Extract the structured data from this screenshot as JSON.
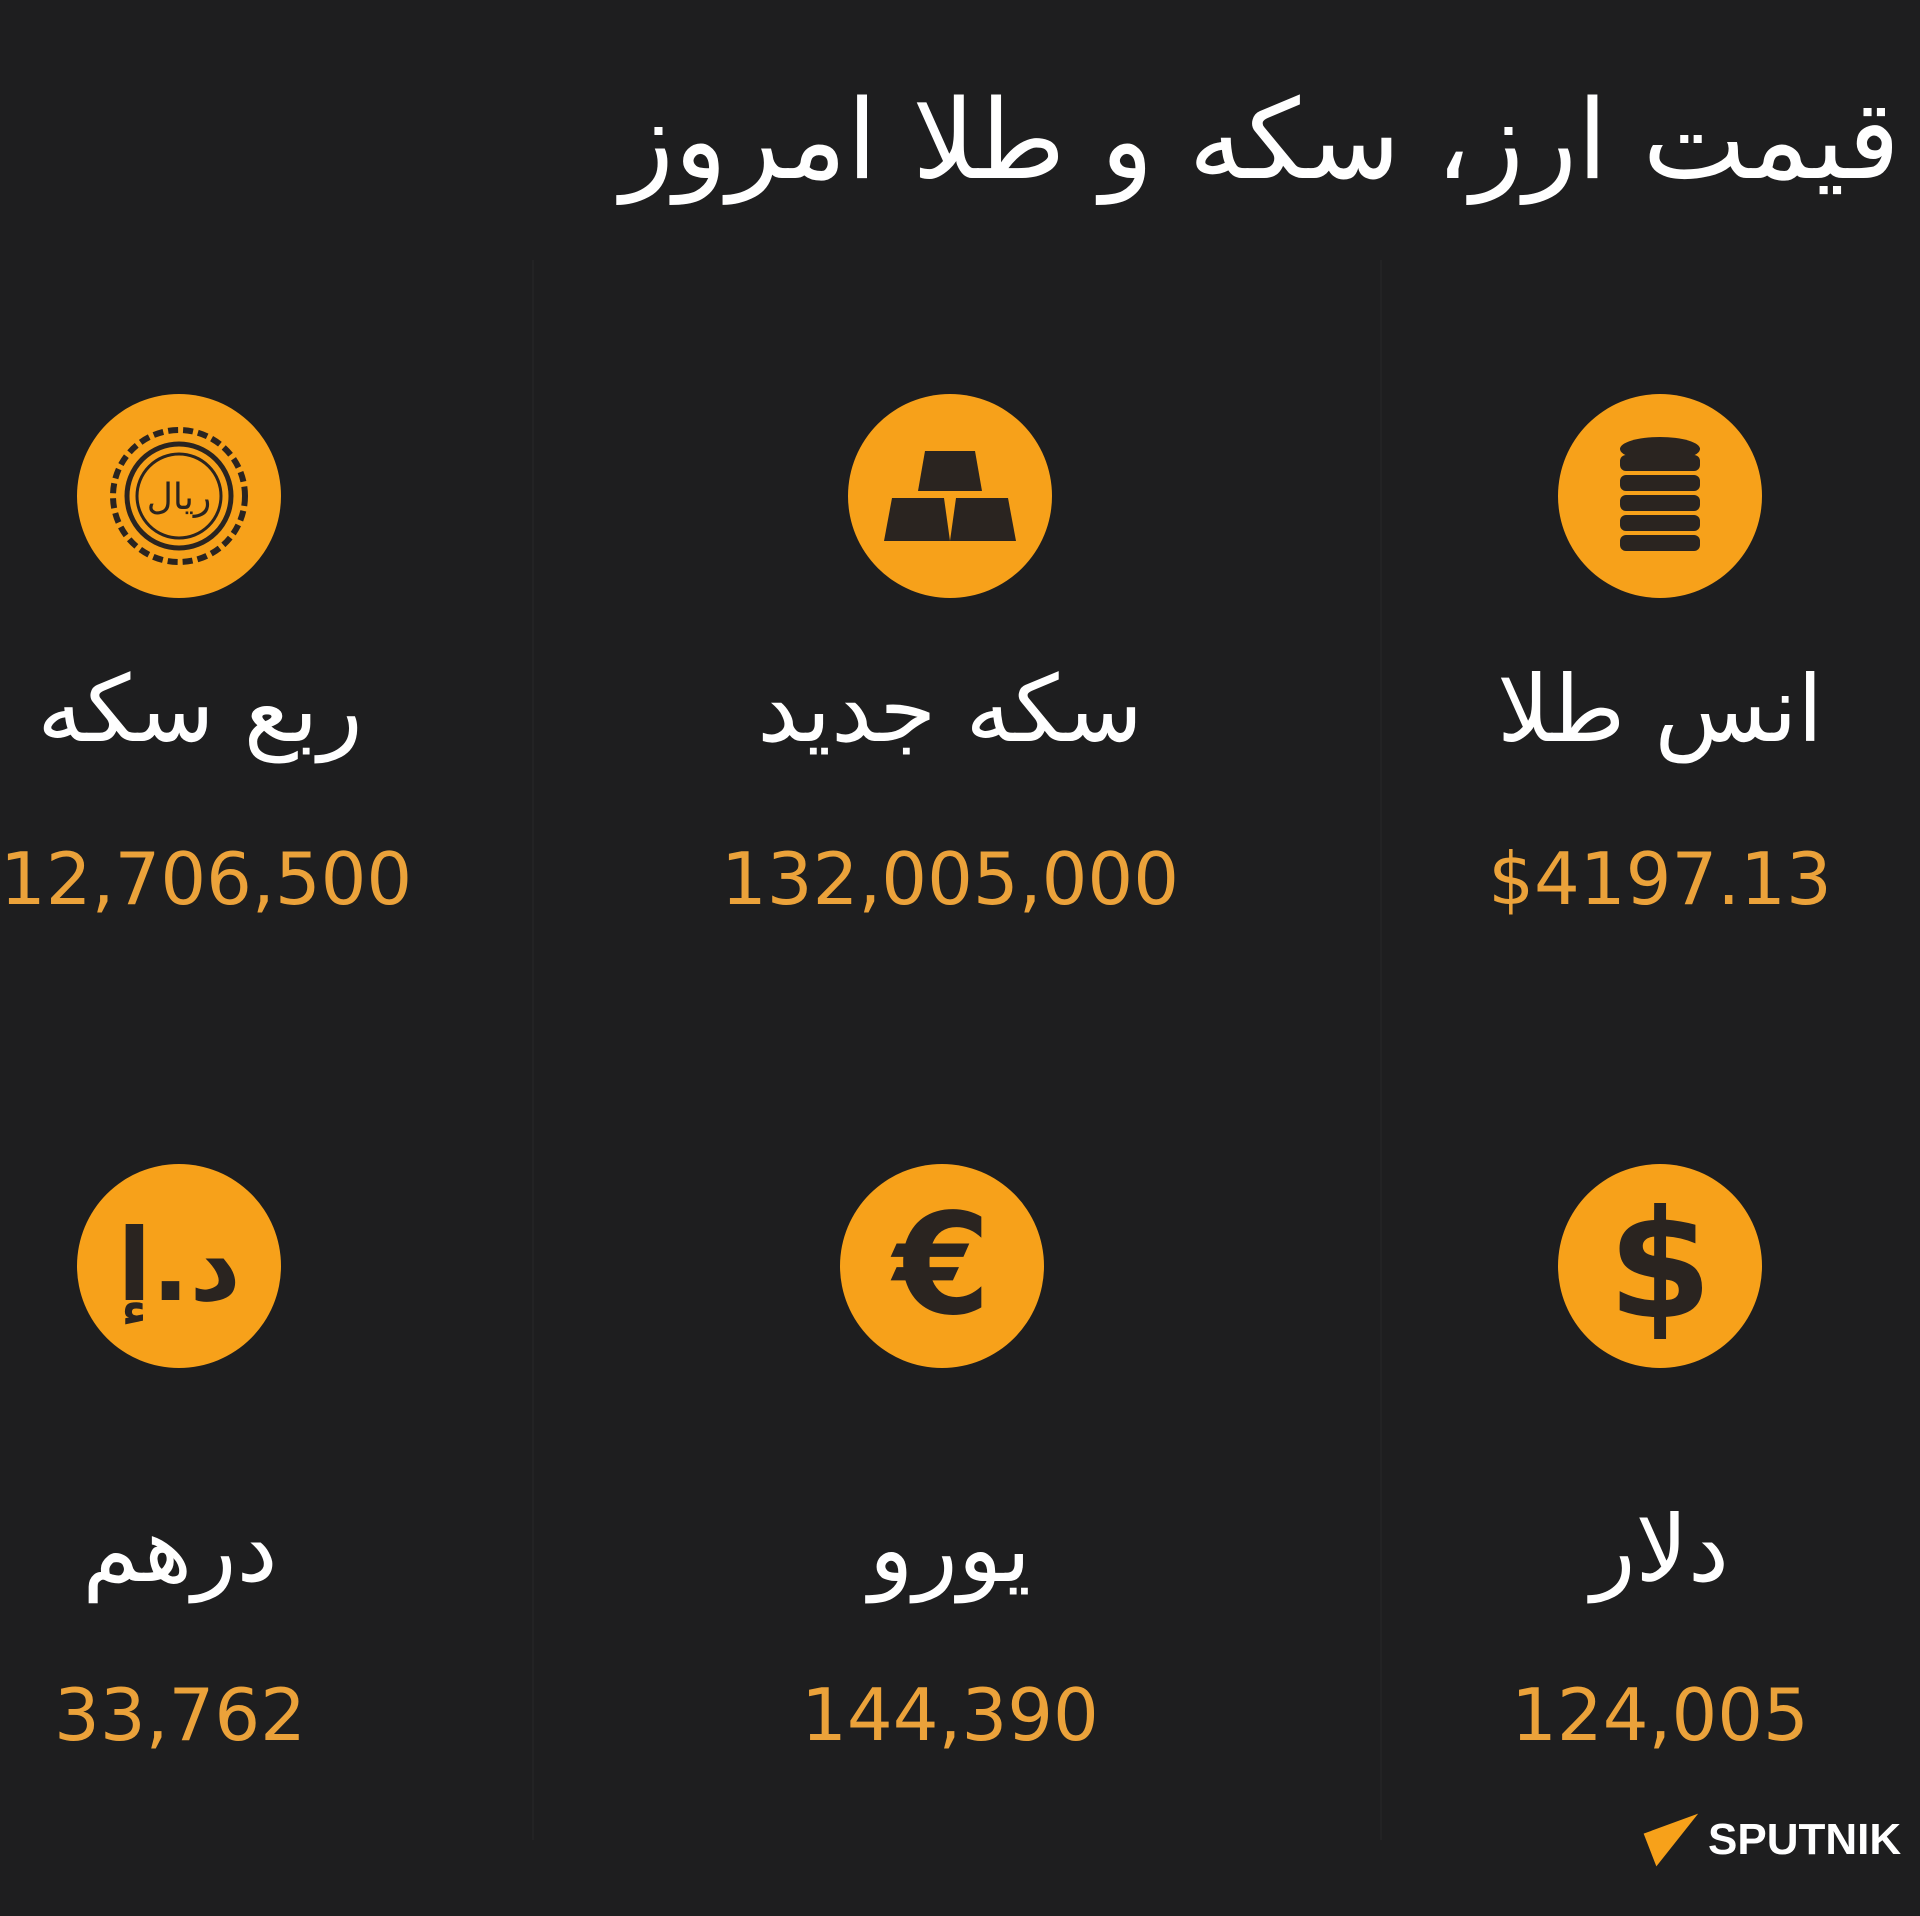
{
  "title": "قیمت ارز، سکه و طلا امروز",
  "accent_color": "#f7a11a",
  "items": [
    {
      "label": "انس طلا",
      "value": "$4197.13",
      "icon": "coin-stack-icon"
    },
    {
      "label": "سکه جدید",
      "value": "132,005,000",
      "icon": "gold-bars-icon"
    },
    {
      "label": "ربع سکه",
      "value": "12,706,500",
      "icon": "rial-coin-icon"
    },
    {
      "label": "دلار",
      "value": "124,005",
      "icon": "dollar-icon"
    },
    {
      "label": "یورو",
      "value": "144,390",
      "icon": "euro-icon"
    },
    {
      "label": "درهم",
      "value": "33,762",
      "icon": "dirham-icon"
    }
  ],
  "logo": {
    "text": "SPUTNIK"
  }
}
